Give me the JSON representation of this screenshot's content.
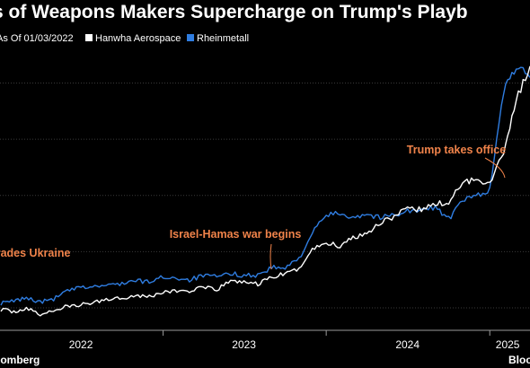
{
  "title": "s of Weapons Makers Supercharge on Trump's Playb",
  "source": "oomberg",
  "brand": "Bloo",
  "colors": {
    "background": "#000000",
    "hanwha": "#ffffff",
    "rheinmetall": "#2f7de1",
    "annotation": "#f0834a",
    "grid": "#3a3a3a"
  },
  "legend": {
    "note": "As Of 01/03/2022",
    "items": [
      {
        "name": "Hanwha Aerospace",
        "color": "#ffffff"
      },
      {
        "name": "Rheinmetall",
        "color": "#2f7de1"
      }
    ]
  },
  "chart_data": {
    "type": "line",
    "xlim": [
      "2022-01-01",
      "2025-04-01"
    ],
    "x_tick_labels": [
      "2022",
      "2023",
      "2024",
      "2025"
    ],
    "grid": true,
    "legend_position": "top-left",
    "series": [
      {
        "name": "Hanwha Aerospace",
        "color": "#ffffff",
        "x": [
          "2022-01-03",
          "2022-02-01",
          "2022-03-01",
          "2022-04-01",
          "2022-05-01",
          "2022-06-01",
          "2022-07-01",
          "2022-08-01",
          "2022-09-01",
          "2022-10-01",
          "2022-11-01",
          "2022-12-01",
          "2023-01-01",
          "2023-02-01",
          "2023-03-01",
          "2023-04-01",
          "2023-05-01",
          "2023-06-01",
          "2023-07-01",
          "2023-08-01",
          "2023-09-01",
          "2023-10-01",
          "2023-11-01",
          "2023-12-01",
          "2024-01-01",
          "2024-02-01",
          "2024-03-01",
          "2024-04-01",
          "2024-05-01",
          "2024-06-01",
          "2024-07-01",
          "2024-08-01",
          "2024-09-01",
          "2024-10-01",
          "2024-11-01",
          "2024-12-01",
          "2025-01-01",
          "2025-02-01",
          "2025-03-01",
          "2025-04-01"
        ],
        "values": [
          0.97,
          0.93,
          0.99,
          0.88,
          0.95,
          1.03,
          1.05,
          1.1,
          1.16,
          1.18,
          1.22,
          1.2,
          1.28,
          1.3,
          1.3,
          1.36,
          1.32,
          1.48,
          1.46,
          1.42,
          1.55,
          1.6,
          1.7,
          2.04,
          2.16,
          2.1,
          2.26,
          2.33,
          2.52,
          2.63,
          2.75,
          2.75,
          2.85,
          2.87,
          3.22,
          3.3,
          3.22,
          3.78,
          4.7,
          5.3
        ]
      },
      {
        "name": "Rheinmetall",
        "color": "#2f7de1",
        "x": [
          "2022-01-03",
          "2022-02-01",
          "2022-03-01",
          "2022-04-01",
          "2022-05-01",
          "2022-06-01",
          "2022-07-01",
          "2022-08-01",
          "2022-09-01",
          "2022-10-01",
          "2022-11-01",
          "2022-12-01",
          "2023-01-01",
          "2023-02-01",
          "2023-03-01",
          "2023-04-01",
          "2023-05-01",
          "2023-06-01",
          "2023-07-01",
          "2023-08-01",
          "2023-09-01",
          "2023-10-01",
          "2023-11-01",
          "2023-12-01",
          "2024-01-01",
          "2024-02-01",
          "2024-03-01",
          "2024-04-01",
          "2024-05-01",
          "2024-06-01",
          "2024-07-01",
          "2024-08-01",
          "2024-09-01",
          "2024-10-01",
          "2024-11-01",
          "2024-12-01",
          "2025-01-01",
          "2025-02-01",
          "2025-03-01",
          "2025-04-01"
        ],
        "values": [
          1.08,
          1.12,
          1.18,
          1.1,
          1.16,
          1.3,
          1.36,
          1.38,
          1.4,
          1.44,
          1.48,
          1.46,
          1.55,
          1.53,
          1.5,
          1.57,
          1.55,
          1.61,
          1.58,
          1.58,
          1.72,
          1.7,
          1.88,
          2.33,
          2.65,
          2.68,
          2.62,
          2.67,
          2.6,
          2.66,
          2.73,
          2.72,
          2.8,
          2.58,
          2.9,
          3.0,
          3.1,
          4.85,
          5.3,
          5.1
        ]
      }
    ],
    "annotations": [
      {
        "text": "nvades Ukraine",
        "x": "2022-02-24"
      },
      {
        "text": "Israel-Hamas war begins",
        "x": "2023-10-07"
      },
      {
        "text": "Trump takes office",
        "x": "2025-01-20"
      }
    ]
  }
}
